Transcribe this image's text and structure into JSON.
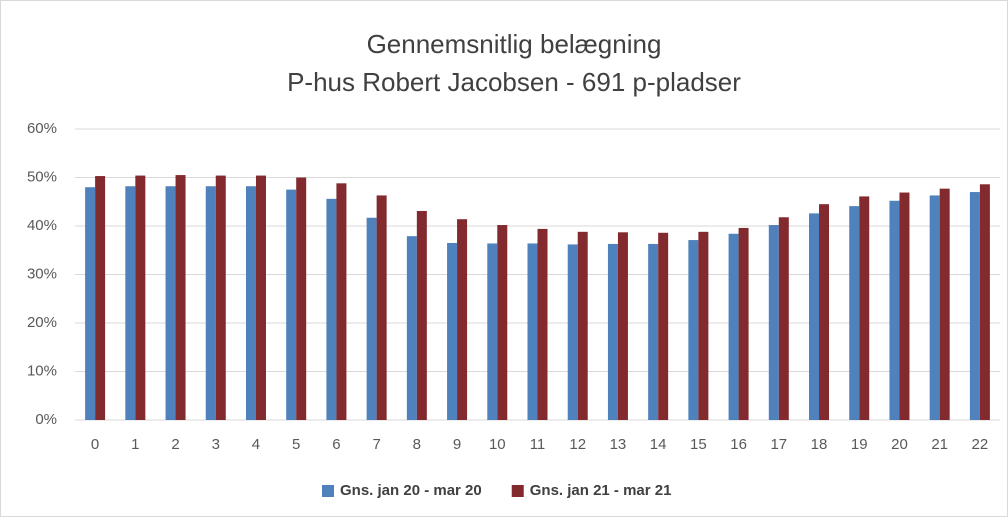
{
  "chart_data": {
    "type": "bar",
    "title": "Gennemsnitlig belægning",
    "subtitle": "P-hus Robert Jacobsen - 691 p-pladser",
    "categories": [
      "0",
      "1",
      "2",
      "3",
      "4",
      "5",
      "6",
      "7",
      "8",
      "9",
      "10",
      "11",
      "12",
      "13",
      "14",
      "15",
      "16",
      "17",
      "18",
      "19",
      "20",
      "21",
      "22"
    ],
    "series": [
      {
        "name": "Gns. jan 20 - mar 20",
        "color": "#4f81bd",
        "values": [
          48.0,
          48.2,
          48.2,
          48.2,
          48.2,
          47.5,
          45.6,
          41.7,
          37.9,
          36.5,
          36.4,
          36.4,
          36.2,
          36.3,
          36.3,
          37.1,
          38.4,
          40.2,
          42.6,
          44.1,
          45.2,
          46.3,
          47.0
        ]
      },
      {
        "name": "Gns. jan 21 - mar 21",
        "color": "#822a2e",
        "values": [
          50.3,
          50.4,
          50.5,
          50.4,
          50.4,
          50.0,
          48.8,
          46.3,
          43.1,
          41.4,
          40.2,
          39.4,
          38.8,
          38.7,
          38.6,
          38.8,
          39.6,
          41.8,
          44.5,
          46.1,
          46.9,
          47.7,
          48.6
        ]
      }
    ],
    "ylim": [
      0,
      60
    ],
    "yticks": [
      {
        "value": 0,
        "label": "0%"
      },
      {
        "value": 10,
        "label": "10%"
      },
      {
        "value": 20,
        "label": "20%"
      },
      {
        "value": 30,
        "label": "30%"
      },
      {
        "value": 40,
        "label": "40%"
      },
      {
        "value": 50,
        "label": "50%"
      },
      {
        "value": 60,
        "label": "60%"
      }
    ],
    "grid": true,
    "legend": "bottom"
  }
}
